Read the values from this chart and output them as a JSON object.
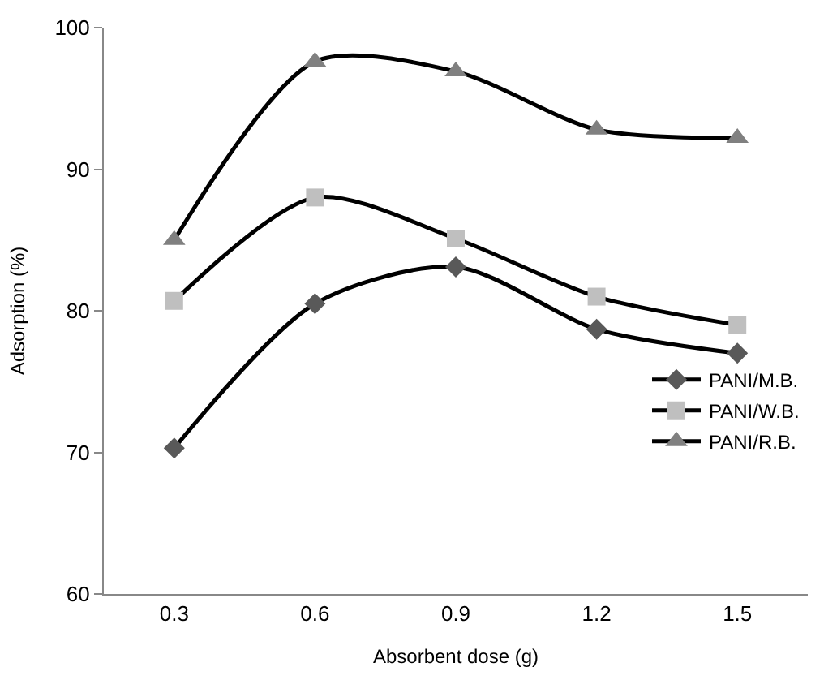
{
  "chart_data": {
    "type": "line",
    "xlabel": "Absorbent dose (g)",
    "ylabel": "Adsorption (%)",
    "categories": [
      "0.3",
      "0.6",
      "0.9",
      "1.2",
      "1.5"
    ],
    "series": [
      {
        "name": "PANI/M.B.",
        "color": "#595959",
        "marker": "diamond",
        "values": [
          70.3,
          80.5,
          83.1,
          78.7,
          77.0
        ]
      },
      {
        "name": "PANI/W.B.",
        "color": "#bfbfbf",
        "marker": "square",
        "values": [
          80.7,
          88.0,
          85.1,
          81.0,
          79.0
        ]
      },
      {
        "name": "PANI/R.B.",
        "color": "#808080",
        "marker": "triangle",
        "values": [
          85.0,
          97.6,
          96.9,
          92.8,
          92.2
        ]
      }
    ],
    "ylim": [
      60,
      100
    ],
    "yticks": [
      60,
      70,
      80,
      90,
      100
    ],
    "legend": "right",
    "line_style": "solid"
  }
}
